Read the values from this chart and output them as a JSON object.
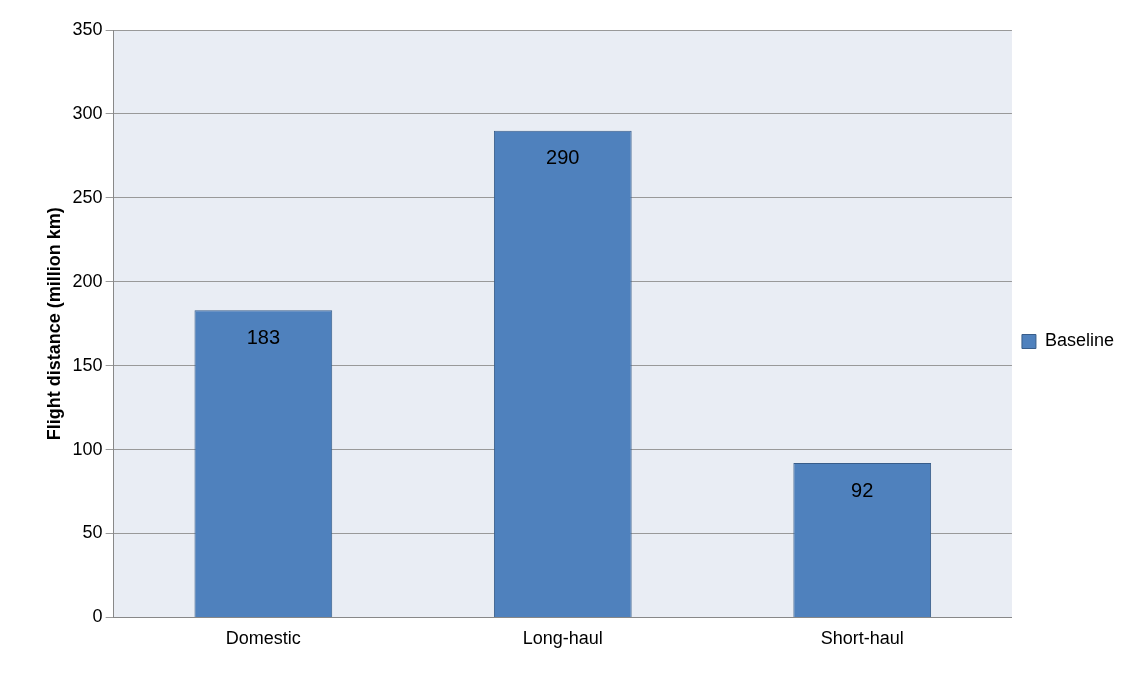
{
  "chart_data": {
    "type": "bar",
    "ylabel": "Flight distance (million km)",
    "categories": [
      "Domestic",
      "Long-haul",
      "Short-haul"
    ],
    "series": [
      {
        "name": "Baseline",
        "color": "#4f81bd",
        "values": [
          183,
          290,
          92
        ]
      }
    ],
    "ylim": [
      0,
      350
    ],
    "yticks": [
      0,
      50,
      100,
      150,
      200,
      250,
      300,
      350
    ],
    "grid": "y",
    "legend": "right",
    "data_labels": true
  }
}
